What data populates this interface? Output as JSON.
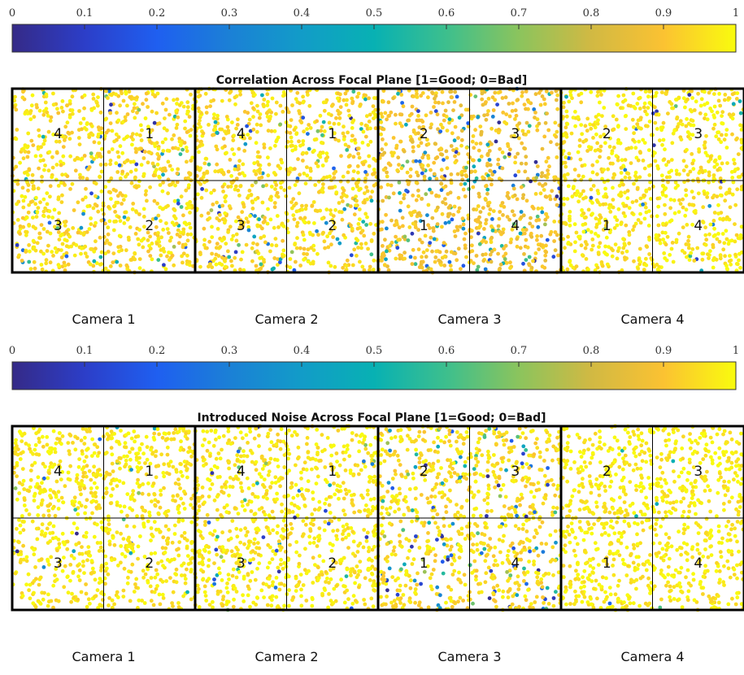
{
  "chart_data": [
    {
      "type": "heatmap",
      "title": "Correlation Across Focal Plane [1=Good; 0=Bad]",
      "colorbar": {
        "colormap": "parula",
        "ticks": [
          0,
          0.1,
          0.2,
          0.3,
          0.4,
          0.5,
          0.6,
          0.7,
          0.8,
          0.9,
          1
        ],
        "tick_labels": [
          "0",
          "0.1",
          "0.2",
          "0.3",
          "0.4",
          "0.5",
          "0.6",
          "0.7",
          "0.8",
          "0.9",
          "1"
        ],
        "range": [
          0,
          1
        ],
        "position": "top"
      },
      "cameras": [
        {
          "label": "Camera 1",
          "ccds": [
            "4",
            "1",
            "3",
            "2"
          ],
          "typical_value": 0.95,
          "low_value_fraction": 0.06
        },
        {
          "label": "Camera 2",
          "ccds": [
            "4",
            "1",
            "3",
            "2"
          ],
          "typical_value": 0.95,
          "low_value_fraction": 0.06
        },
        {
          "label": "Camera 3",
          "ccds": [
            "2",
            "3",
            "1",
            "4"
          ],
          "typical_value": 0.9,
          "low_value_fraction": 0.15
        },
        {
          "label": "Camera 4",
          "ccds": [
            "2",
            "3",
            "1",
            "4"
          ],
          "typical_value": 0.97,
          "low_value_fraction": 0.02
        }
      ]
    },
    {
      "type": "heatmap",
      "title": "Introduced Noise Across Focal Plane [1=Good; 0=Bad]",
      "colorbar": {
        "colormap": "parula",
        "ticks": [
          0,
          0.1,
          0.2,
          0.3,
          0.4,
          0.5,
          0.6,
          0.7,
          0.8,
          0.9,
          1
        ],
        "tick_labels": [
          "0",
          "0.1",
          "0.2",
          "0.3",
          "0.4",
          "0.5",
          "0.6",
          "0.7",
          "0.8",
          "0.9",
          "1"
        ],
        "range": [
          0,
          1
        ],
        "position": "top"
      },
      "cameras": [
        {
          "label": "Camera 1",
          "ccds": [
            "4",
            "1",
            "3",
            "2"
          ],
          "typical_value": 0.97,
          "low_value_fraction": 0.02
        },
        {
          "label": "Camera 2",
          "ccds": [
            "4",
            "1",
            "3",
            "2"
          ],
          "typical_value": 0.97,
          "low_value_fraction": 0.03
        },
        {
          "label": "Camera 3",
          "ccds": [
            "2",
            "3",
            "1",
            "4"
          ],
          "typical_value": 0.95,
          "low_value_fraction": 0.12
        },
        {
          "label": "Camera 4",
          "ccds": [
            "2",
            "3",
            "1",
            "4"
          ],
          "typical_value": 0.98,
          "low_value_fraction": 0.01
        }
      ]
    }
  ]
}
